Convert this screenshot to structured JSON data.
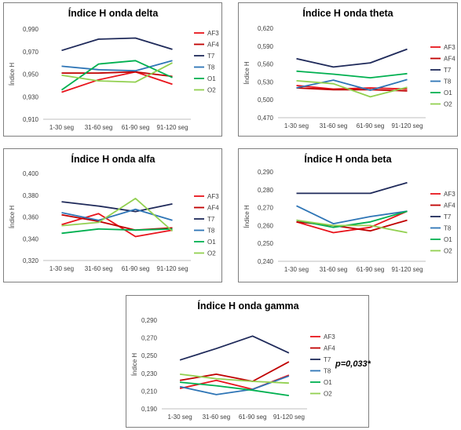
{
  "chart_data": [
    {
      "type": "line",
      "title": "Índice H onda delta",
      "ylabel": "Índice H",
      "categories": [
        "1-30 seg",
        "31-60 seg",
        "61-90 seg",
        "91-120 seg"
      ],
      "ylim": [
        0.91,
        0.99
      ],
      "yticks": [
        "0,910",
        "0,930",
        "0,950",
        "0,970",
        "0,990"
      ],
      "grid": false,
      "legend": "right",
      "series": [
        {
          "name": "AF3",
          "color": "#e8141c",
          "values": [
            0.934,
            0.945,
            0.952,
            0.941
          ]
        },
        {
          "name": "AF4",
          "color": "#c00000",
          "values": [
            0.951,
            0.951,
            0.952,
            0.948
          ]
        },
        {
          "name": "T7",
          "color": "#1f2a5a",
          "values": [
            0.971,
            0.981,
            0.982,
            0.972
          ]
        },
        {
          "name": "T8",
          "color": "#2e75b6",
          "values": [
            0.957,
            0.954,
            0.953,
            0.962
          ]
        },
        {
          "name": "O1",
          "color": "#00b050",
          "values": [
            0.936,
            0.959,
            0.962,
            0.947
          ]
        },
        {
          "name": "O2",
          "color": "#92d050",
          "values": [
            0.949,
            0.944,
            0.943,
            0.96
          ]
        }
      ]
    },
    {
      "type": "line",
      "title": "Índice H onda theta",
      "ylabel": "Índice H",
      "categories": [
        "1-30 seg",
        "31-60 seg",
        "61-90 seg",
        "91-120 seg"
      ],
      "ylim": [
        0.47,
        0.62
      ],
      "yticks": [
        "0,470",
        "0,500",
        "0,530",
        "0,560",
        "0,590",
        "0,620"
      ],
      "grid": false,
      "legend": "right",
      "series": [
        {
          "name": "AF3",
          "color": "#e8141c",
          "values": [
            0.524,
            0.518,
            0.52,
            0.518
          ]
        },
        {
          "name": "AF4",
          "color": "#c00000",
          "values": [
            0.52,
            0.517,
            0.517,
            0.515
          ]
        },
        {
          "name": "T7",
          "color": "#1f2a5a",
          "values": [
            0.569,
            0.555,
            0.562,
            0.585
          ]
        },
        {
          "name": "T8",
          "color": "#2e75b6",
          "values": [
            0.52,
            0.533,
            0.516,
            0.534
          ]
        },
        {
          "name": "O1",
          "color": "#00b050",
          "values": [
            0.548,
            0.543,
            0.537,
            0.544
          ]
        },
        {
          "name": "O2",
          "color": "#92d050",
          "values": [
            0.532,
            0.527,
            0.505,
            0.521
          ]
        }
      ]
    },
    {
      "type": "line",
      "title": "Índice H onda alfa",
      "ylabel": "Índice H",
      "categories": [
        "1-30 seg",
        "31-60 seg",
        "61-90 seg",
        "91-120 seg"
      ],
      "ylim": [
        0.32,
        0.4
      ],
      "yticks": [
        "0,320",
        "0,340",
        "0,360",
        "0,380",
        "0,400"
      ],
      "grid": false,
      "legend": "right",
      "series": [
        {
          "name": "AF3",
          "color": "#e8141c",
          "values": [
            0.353,
            0.363,
            0.342,
            0.348
          ]
        },
        {
          "name": "AF4",
          "color": "#c00000",
          "values": [
            0.362,
            0.356,
            0.348,
            0.35
          ]
        },
        {
          "name": "T7",
          "color": "#1f2a5a",
          "values": [
            0.374,
            0.37,
            0.365,
            0.372
          ]
        },
        {
          "name": "T8",
          "color": "#2e75b6",
          "values": [
            0.364,
            0.357,
            0.367,
            0.357
          ]
        },
        {
          "name": "O1",
          "color": "#00b050",
          "values": [
            0.345,
            0.349,
            0.348,
            0.349
          ]
        },
        {
          "name": "O2",
          "color": "#92d050",
          "values": [
            0.352,
            0.355,
            0.377,
            0.347
          ]
        }
      ]
    },
    {
      "type": "line",
      "title": "Índice H onda beta",
      "ylabel": "Índice H",
      "categories": [
        "1-30 seg",
        "31-60 seg",
        "61-90 seg",
        "91-120 seg"
      ],
      "ylim": [
        0.24,
        0.29
      ],
      "yticks": [
        "0,240",
        "0,250",
        "0,260",
        "0,270",
        "0,280",
        "0,290"
      ],
      "grid": false,
      "legend": "right",
      "series": [
        {
          "name": "AF3",
          "color": "#e8141c",
          "values": [
            0.262,
            0.256,
            0.259,
            0.268
          ]
        },
        {
          "name": "AF4",
          "color": "#c00000",
          "values": [
            0.262,
            0.26,
            0.257,
            0.263
          ]
        },
        {
          "name": "T7",
          "color": "#1f2a5a",
          "values": [
            0.278,
            0.278,
            0.278,
            0.284
          ]
        },
        {
          "name": "T8",
          "color": "#2e75b6",
          "values": [
            0.271,
            0.261,
            0.265,
            0.268
          ]
        },
        {
          "name": "O1",
          "color": "#00b050",
          "values": [
            0.263,
            0.259,
            0.262,
            0.268
          ]
        },
        {
          "name": "O2",
          "color": "#92d050",
          "values": [
            0.263,
            0.26,
            0.26,
            0.256
          ]
        }
      ]
    },
    {
      "type": "line",
      "title": "Índice H onda gamma",
      "ylabel": "Índice H",
      "categories": [
        "1-30 seg",
        "31-60 seg",
        "61-90 seg",
        "91-120 seg"
      ],
      "ylim": [
        0.19,
        0.29
      ],
      "yticks": [
        "0,190",
        "0,210",
        "0,230",
        "0,250",
        "0,270",
        "0,290"
      ],
      "grid": false,
      "legend": "right",
      "annotation": "p=0,033*",
      "series": [
        {
          "name": "AF3",
          "color": "#e8141c",
          "values": [
            0.213,
            0.222,
            0.212,
            0.228
          ]
        },
        {
          "name": "AF4",
          "color": "#c00000",
          "values": [
            0.222,
            0.229,
            0.221,
            0.243
          ]
        },
        {
          "name": "T7",
          "color": "#1f2a5a",
          "values": [
            0.245,
            0.258,
            0.272,
            0.253
          ]
        },
        {
          "name": "T8",
          "color": "#2e75b6",
          "values": [
            0.215,
            0.206,
            0.212,
            0.227
          ]
        },
        {
          "name": "O1",
          "color": "#00b050",
          "values": [
            0.22,
            0.216,
            0.211,
            0.205
          ]
        },
        {
          "name": "O2",
          "color": "#92d050",
          "values": [
            0.229,
            0.224,
            0.221,
            0.219
          ]
        }
      ]
    }
  ]
}
